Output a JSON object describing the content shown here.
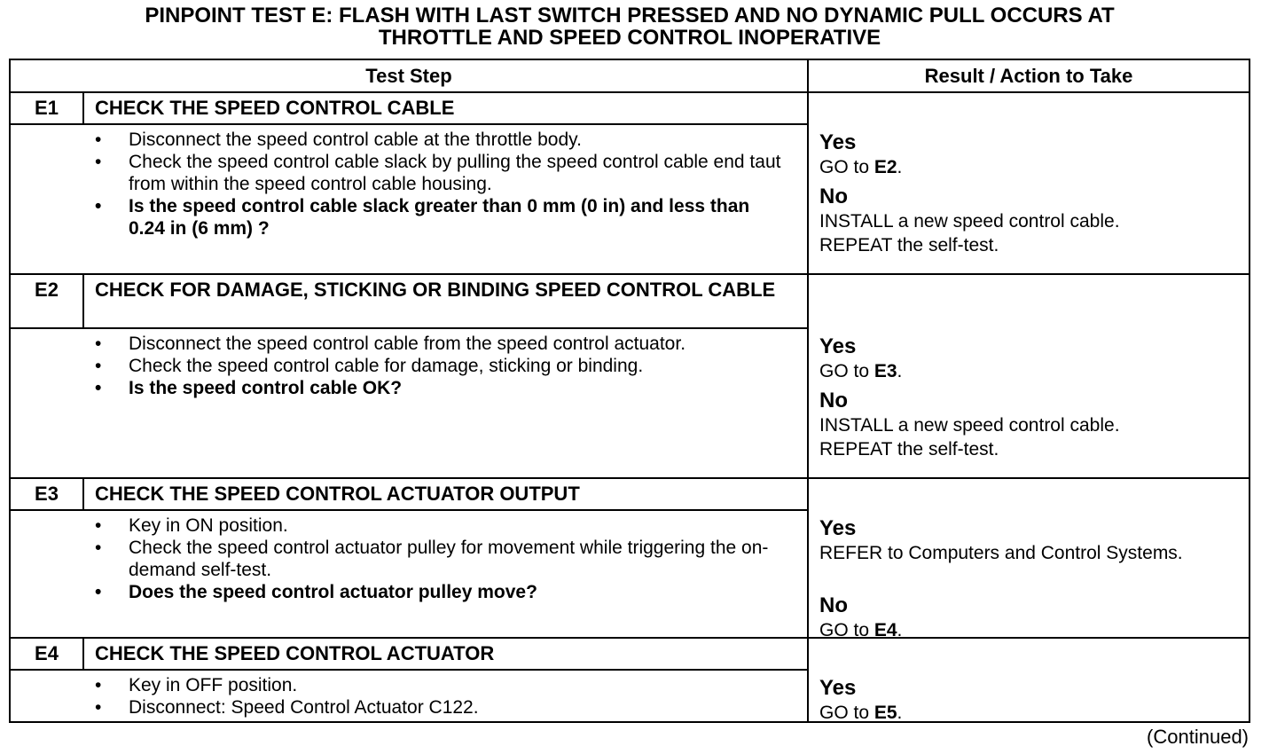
{
  "title": [
    "PINPOINT TEST E: FLASH WITH LAST SWITCH PRESSED AND NO DYNAMIC PULL OCCURS AT",
    "THROTTLE AND SPEED CONTROL INOPERATIVE"
  ],
  "table": {
    "headers": [
      "Test Step",
      "Result / Action to Take"
    ],
    "steps": [
      {
        "id": "E1",
        "title": "CHECK THE SPEED CONTROL CABLE",
        "bullets": [
          {
            "text": "Disconnect the speed control cable at the throttle body.",
            "bold": false
          },
          {
            "text": "Check the speed control cable slack by pulling the speed control cable end taut from within the speed control cable housing.",
            "bold": false
          },
          {
            "text": "Is the speed control cable slack greater than 0 mm (0 in) and less than 0.24 in (6 mm) ?",
            "bold": true
          }
        ],
        "results": [
          {
            "label": "Yes",
            "actions": [
              [
                {
                  "text": "GO to "
                },
                {
                  "text": "E2",
                  "bold": true
                },
                {
                  "text": "."
                }
              ]
            ]
          },
          {
            "label": "No",
            "actions": [
              [
                {
                  "text": "INSTALL a new speed control cable."
                }
              ],
              [
                {
                  "text": "REPEAT the self-test."
                }
              ]
            ]
          }
        ]
      },
      {
        "id": "E2",
        "title": "CHECK FOR DAMAGE, STICKING OR BINDING SPEED CONTROL CABLE",
        "bullets": [
          {
            "text": "Disconnect the speed control cable from the speed control actuator.",
            "bold": false
          },
          {
            "text": "Check the speed control cable for damage, sticking or binding.",
            "bold": false
          },
          {
            "text": "Is the speed control cable OK?",
            "bold": true
          }
        ],
        "results": [
          {
            "label": "Yes",
            "actions": [
              [
                {
                  "text": "GO to "
                },
                {
                  "text": "E3",
                  "bold": true
                },
                {
                  "text": "."
                }
              ]
            ]
          },
          {
            "label": "No",
            "actions": [
              [
                {
                  "text": "INSTALL a new speed control cable."
                }
              ],
              [
                {
                  "text": "REPEAT the self-test."
                }
              ]
            ]
          }
        ]
      },
      {
        "id": "E3",
        "title": "CHECK THE SPEED CONTROL ACTUATOR OUTPUT",
        "bullets": [
          {
            "text": "Key in ON position.",
            "bold": false
          },
          {
            "text": "Check the speed control actuator pulley for movement while triggering the on-demand self-test.",
            "bold": false
          },
          {
            "text": "Does the speed control actuator pulley move?",
            "bold": true
          }
        ],
        "results": [
          {
            "label": "Yes",
            "actions": [
              [
                {
                  "text": "REFER to Computers and Control Systems."
                }
              ]
            ]
          },
          {
            "label": "No",
            "actions": [
              [
                {
                  "text": "GO to "
                },
                {
                  "text": "E4",
                  "bold": true
                },
                {
                  "text": "."
                }
              ]
            ]
          }
        ]
      },
      {
        "id": "E4",
        "title": "CHECK THE SPEED CONTROL ACTUATOR",
        "bullets": [
          {
            "text": "Key in OFF position.",
            "bold": false
          },
          {
            "text": "Disconnect: Speed Control Actuator C122.",
            "bold": false
          }
        ],
        "results": [
          {
            "label": "Yes",
            "actions": [
              [
                {
                  "text": "GO to "
                },
                {
                  "text": "E5",
                  "bold": true
                },
                {
                  "text": "."
                }
              ]
            ]
          }
        ]
      }
    ]
  },
  "footer": "(Continued)"
}
